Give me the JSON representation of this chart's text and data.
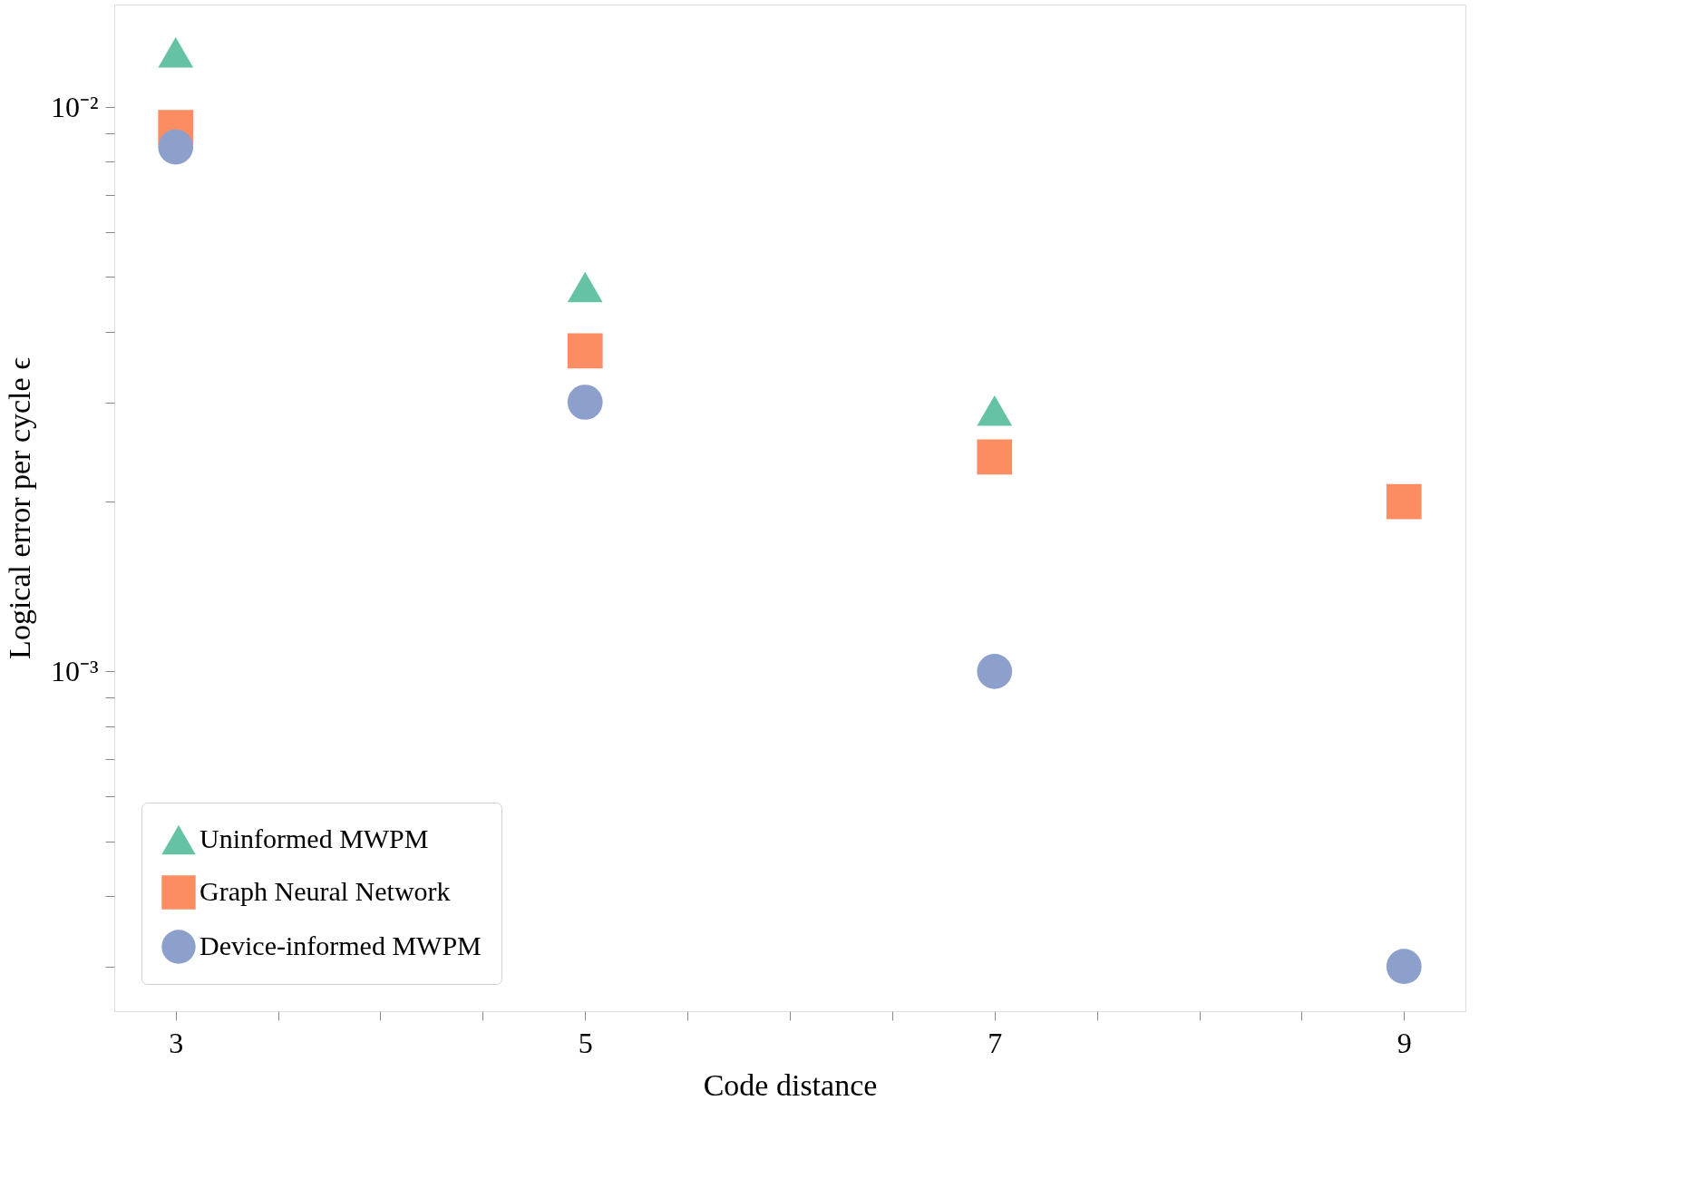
{
  "chart_data": {
    "type": "scatter",
    "xlabel": "Code distance",
    "ylabel": "Logical error per cycle ϵ",
    "x": [
      3,
      5,
      7,
      9
    ],
    "series": [
      {
        "name": "Uninformed MWPM",
        "color": "#66c2a5",
        "marker": "triangle",
        "values": [
          0.0125,
          0.0048,
          0.0029,
          null
        ]
      },
      {
        "name": "Graph Neural Network",
        "color": "#fc8d62",
        "marker": "square",
        "values": [
          0.0092,
          0.0037,
          0.0024,
          0.002
        ]
      },
      {
        "name": "Device-informed MWPM",
        "color": "#8da0cb",
        "marker": "circle",
        "values": [
          0.0085,
          0.003,
          0.001,
          0.0003
        ]
      }
    ],
    "log": "y",
    "grid": false,
    "legend": "bottom left",
    "xlim": [
      2.7,
      9.3
    ],
    "xticks": [
      3,
      {
        "value": 3.5,
        "label": null
      },
      {
        "value": 4,
        "label": null
      },
      {
        "value": 4.5,
        "label": null
      },
      5,
      {
        "value": 5.5,
        "label": null
      },
      {
        "value": 6,
        "label": null
      },
      {
        "value": 6.5,
        "label": null
      },
      7,
      {
        "value": 7.5,
        "label": null
      },
      {
        "value": 8,
        "label": null
      },
      {
        "value": 8.5,
        "label": null
      },
      9
    ],
    "ylim": [
      0.00025,
      0.0152
    ],
    "yticks": [
      {
        "value": 0.0003,
        "label": null
      },
      {
        "value": 0.0004,
        "label": null
      },
      {
        "value": 0.0005,
        "label": null
      },
      {
        "value": 0.0006,
        "label": null
      },
      {
        "value": 0.0007,
        "label": null
      },
      {
        "value": 0.0008,
        "label": null
      },
      {
        "value": 0.0009,
        "label": null
      },
      {
        "value": 0.001,
        "label": "10⁻³"
      },
      {
        "value": 0.002,
        "label": null
      },
      {
        "value": 0.003,
        "label": null
      },
      {
        "value": 0.004,
        "label": null
      },
      {
        "value": 0.005,
        "label": null
      },
      {
        "value": 0.006,
        "label": null
      },
      {
        "value": 0.007,
        "label": null
      },
      {
        "value": 0.008,
        "label": null
      },
      {
        "value": 0.009,
        "label": null
      },
      {
        "value": 0.01,
        "label": "10⁻²"
      }
    ]
  }
}
